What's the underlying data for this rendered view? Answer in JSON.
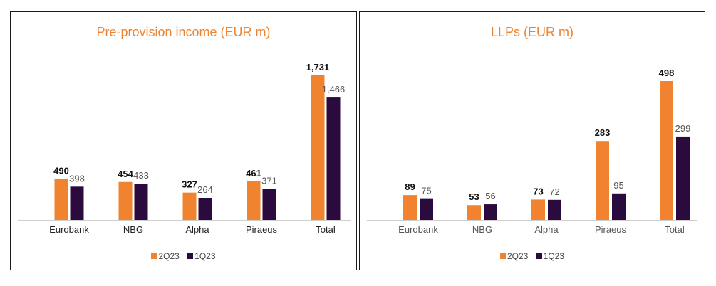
{
  "colors": {
    "series_2q23": "#f0832f",
    "series_1q23": "#2b0a3d",
    "title": "#f0832f"
  },
  "chart_data": [
    {
      "type": "bar",
      "title": "Pre-provision income (EUR m)",
      "categories": [
        "Eurobank",
        "NBG",
        "Alpha",
        "Piraeus",
        "Total"
      ],
      "series": [
        {
          "name": "2Q23",
          "values": [
            490,
            454,
            327,
            461,
            1731
          ],
          "labels": [
            "490",
            "454",
            "327",
            "461",
            "1,731"
          ]
        },
        {
          "name": "1Q23",
          "values": [
            398,
            433,
            264,
            371,
            1466
          ],
          "labels": [
            "398",
            "433",
            "264",
            "371",
            "1,466"
          ]
        }
      ],
      "ylim": [
        0,
        1731
      ],
      "grid": false,
      "legend": "bottom-center"
    },
    {
      "type": "bar",
      "title": "LLPs (EUR m)",
      "categories": [
        "Eurobank",
        "NBG",
        "Alpha",
        "Piraeus",
        "Total"
      ],
      "series": [
        {
          "name": "2Q23",
          "values": [
            89,
            53,
            73,
            283,
            498
          ],
          "labels": [
            "89",
            "53",
            "73",
            "283",
            "498"
          ]
        },
        {
          "name": "1Q23",
          "values": [
            75,
            56,
            72,
            95,
            299
          ],
          "labels": [
            "75",
            "56",
            "72",
            "95",
            "299"
          ]
        }
      ],
      "ylim": [
        0,
        498
      ],
      "grid": false,
      "legend": "bottom-center"
    }
  ]
}
